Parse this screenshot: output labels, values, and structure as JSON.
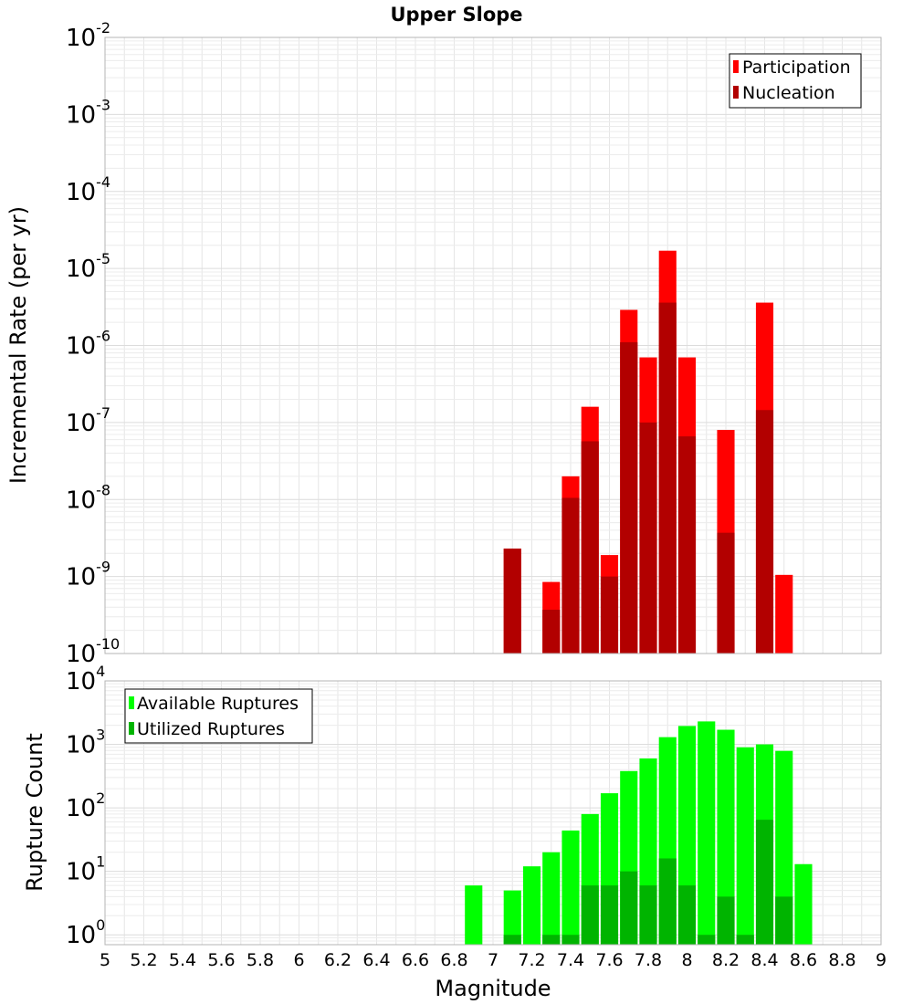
{
  "chart_data": [
    {
      "type": "bar",
      "title": "Upper Slope",
      "xlabel": "",
      "ylabel": "Incremental Rate (per yr)",
      "yscale": "log",
      "xlim": [
        5,
        9
      ],
      "ylim": [
        1e-10,
        0.01
      ],
      "ytick_exponents": [
        -10,
        -9,
        -8,
        -7,
        -6,
        -5,
        -4,
        -3,
        -2
      ],
      "grid": true,
      "legend_position": "top-right",
      "series": [
        {
          "name": "Participation",
          "color": "#ff0000",
          "x": [
            7.1,
            7.3,
            7.4,
            7.5,
            7.6,
            7.7,
            7.8,
            7.9,
            8.0,
            8.2,
            8.4,
            8.5
          ],
          "values": [
            2.3e-09,
            8.5e-10,
            2e-08,
            1.6e-07,
            1.9e-09,
            2.9e-06,
            7e-07,
            1.7e-05,
            7e-07,
            8e-08,
            3.6e-06,
            1.05e-09
          ]
        },
        {
          "name": "Nucleation",
          "color": "#b20000",
          "x": [
            7.1,
            7.3,
            7.4,
            7.5,
            7.6,
            7.7,
            7.8,
            7.9,
            8.0,
            8.2,
            8.4
          ],
          "values": [
            2.3e-09,
            3.7e-10,
            1.05e-08,
            5.7e-08,
            1e-09,
            1.1e-06,
            1e-07,
            3.6e-06,
            6.6e-08,
            3.7e-09,
            1.45e-07
          ]
        }
      ]
    },
    {
      "type": "bar",
      "title": "",
      "xlabel": "Magnitude",
      "ylabel": "Rupture Count",
      "yscale": "log",
      "xlim": [
        5,
        9
      ],
      "ylim": [
        0.7,
        10000.0
      ],
      "ytick_exponents": [
        0,
        1,
        2,
        3,
        4
      ],
      "xticks": [
        "5",
        "5.2",
        "5.4",
        "5.6",
        "5.8",
        "6",
        "6.2",
        "6.4",
        "6.6",
        "6.8",
        "7",
        "7.2",
        "7.4",
        "7.6",
        "7.8",
        "8",
        "8.2",
        "8.4",
        "8.6",
        "8.8",
        "9"
      ],
      "grid": true,
      "legend_position": "top-left",
      "series": [
        {
          "name": "Available Ruptures",
          "color": "#00ff00",
          "x": [
            6.9,
            7.1,
            7.2,
            7.3,
            7.4,
            7.5,
            7.6,
            7.7,
            7.8,
            7.9,
            8.0,
            8.1,
            8.2,
            8.3,
            8.4,
            8.5,
            8.6
          ],
          "values": [
            6,
            5,
            12,
            20,
            44,
            80,
            170,
            380,
            600,
            1300,
            1950,
            2300,
            1700,
            900,
            1000,
            790,
            13
          ]
        },
        {
          "name": "Utilized Ruptures",
          "color": "#00b400",
          "x": [
            7.1,
            7.3,
            7.4,
            7.5,
            7.6,
            7.7,
            7.8,
            7.9,
            8.0,
            8.1,
            8.2,
            8.3,
            8.4,
            8.5
          ],
          "values": [
            1,
            1,
            1,
            6,
            6,
            10,
            6,
            16,
            6,
            1,
            4,
            1,
            65,
            4
          ]
        }
      ]
    }
  ]
}
